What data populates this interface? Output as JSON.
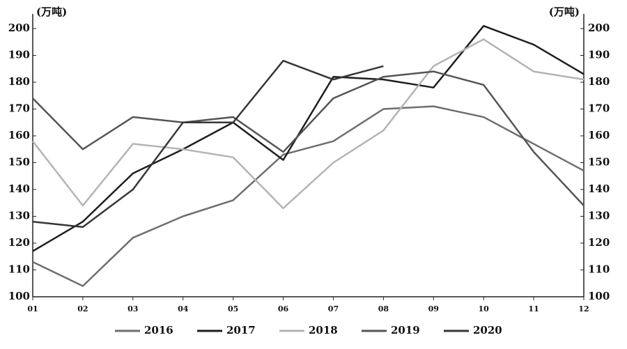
{
  "chart_data": {
    "type": "line",
    "y_label": "(万吨)",
    "y2_label": "(万吨)",
    "categories": [
      "01",
      "02",
      "03",
      "04",
      "05",
      "06",
      "07",
      "08",
      "09",
      "10",
      "11",
      "12"
    ],
    "series": [
      {
        "name": "2016",
        "color": "#6e6e6e",
        "values": [
          113,
          104,
          122,
          130,
          136,
          153,
          158,
          170,
          171,
          167,
          157,
          147
        ]
      },
      {
        "name": "2017",
        "color": "#1e1e1e",
        "values": [
          117,
          128,
          146,
          155,
          165,
          151,
          182,
          181,
          178,
          201,
          194,
          183
        ]
      },
      {
        "name": "2018",
        "color": "#b4b4b4",
        "values": [
          158,
          134,
          157,
          155,
          152,
          133,
          150,
          162,
          186,
          196,
          184,
          181
        ]
      },
      {
        "name": "2019",
        "color": "#555555",
        "values": [
          174,
          155,
          167,
          165,
          167,
          154,
          174,
          182,
          184,
          179,
          154,
          134
        ]
      },
      {
        "name": "2020",
        "color": "#363636",
        "values": [
          128,
          126,
          140,
          165,
          165,
          188,
          181,
          186,
          null,
          null,
          null,
          null
        ]
      }
    ],
    "ylim": [
      100,
      200
    ],
    "yticks": [
      100,
      110,
      120,
      130,
      140,
      150,
      160,
      170,
      180,
      190,
      200
    ],
    "y2lim": [
      100,
      200
    ],
    "y2ticks": [
      100,
      110,
      120,
      130,
      140,
      150,
      160,
      170,
      180,
      190,
      200
    ],
    "legend": "bottom"
  }
}
